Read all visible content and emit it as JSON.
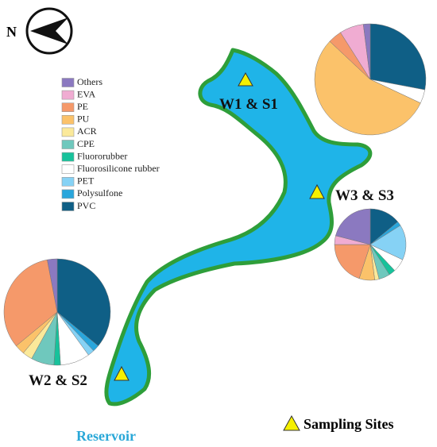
{
  "compass_label": "N",
  "legend": {
    "categories": [
      "Others",
      "EVA",
      "PE",
      "PU",
      "ACR",
      "CPE",
      "Fluororubber",
      "Fluorosilicone rubber",
      "PET",
      "Polysulfone",
      "PVC"
    ],
    "colors": [
      "#8b79c0",
      "#f0acd2",
      "#f5996a",
      "#fbc26a",
      "#fbe99a",
      "#6fc8bd",
      "#17c29b",
      "#ffffff",
      "#86d2f5",
      "#29a6dc",
      "#0f5f86"
    ]
  },
  "sites": [
    {
      "label": "W1 & S1",
      "values": [
        2,
        7,
        4,
        55,
        0,
        0,
        0,
        4,
        0,
        0,
        28
      ]
    },
    {
      "label": "W3 & S3",
      "values": [
        21,
        4,
        20,
        7,
        2,
        5,
        3,
        6,
        16,
        2,
        14
      ]
    },
    {
      "label": "W2 & S2",
      "values": [
        3,
        0,
        33,
        3,
        3,
        7,
        2,
        9,
        2,
        2,
        36
      ]
    }
  ],
  "reservoir_label": "Reservoir",
  "key_label": "Sampling Sites"
}
